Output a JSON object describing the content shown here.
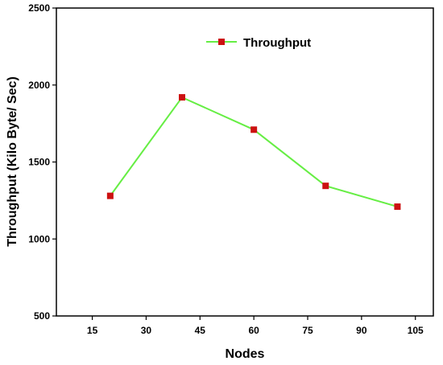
{
  "chart_data": {
    "type": "line",
    "x_label": "Nodes",
    "y_label": "Throughput (Kilo Byte/ Sec)",
    "x_range": [
      5,
      110
    ],
    "y_range": [
      500,
      2500
    ],
    "x_ticks": [
      15,
      30,
      45,
      60,
      75,
      90,
      105
    ],
    "y_ticks": [
      500,
      1000,
      1500,
      2000,
      2500
    ],
    "grid": false,
    "legend_position": "top-center",
    "series": [
      {
        "name": "Throughput",
        "x": [
          20,
          40,
          60,
          80,
          100
        ],
        "y": [
          1280,
          1920,
          1710,
          1345,
          1210
        ],
        "line_color": "#66ee44",
        "marker_color": "#cc1111",
        "marker": "square"
      }
    ]
  }
}
